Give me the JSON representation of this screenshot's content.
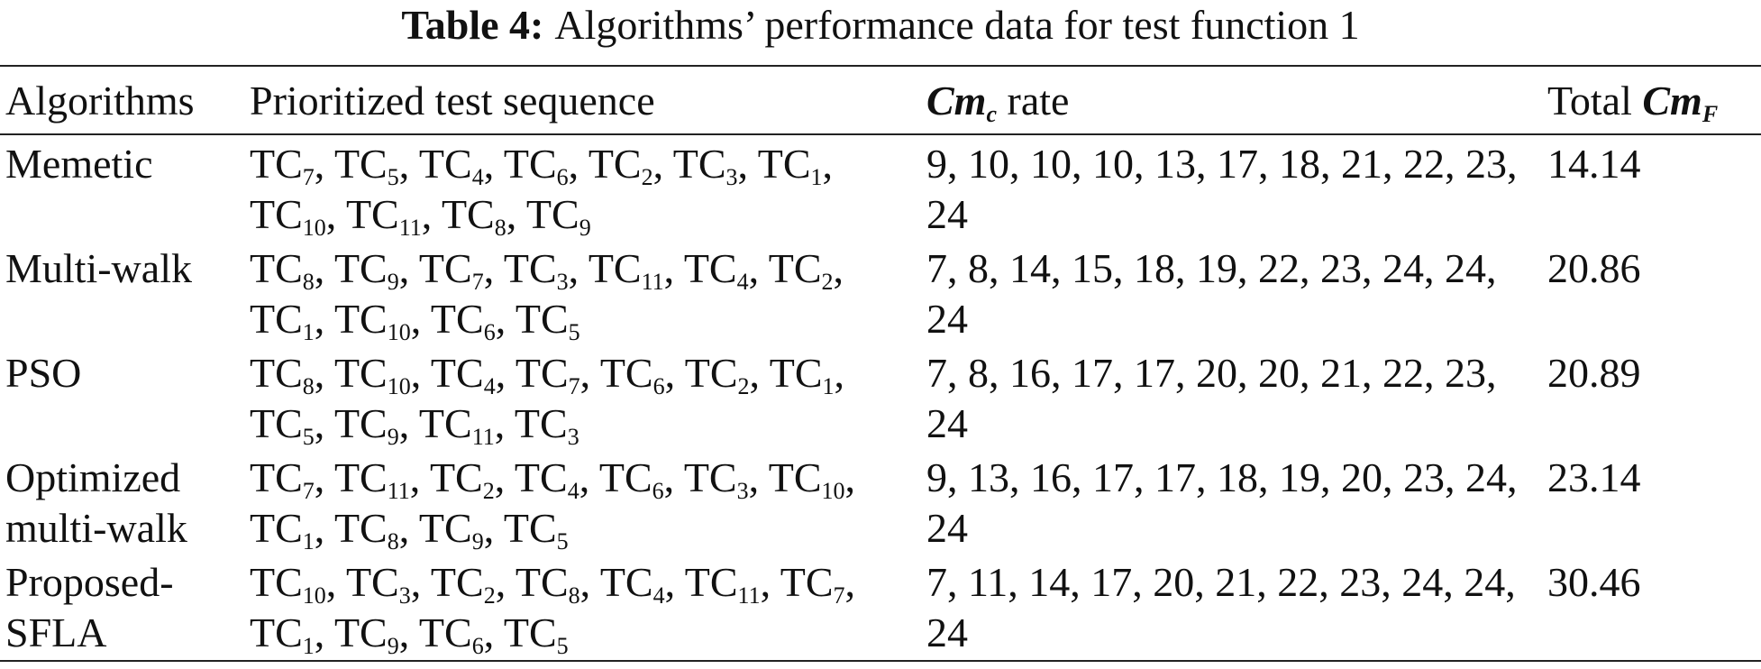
{
  "caption": {
    "label": "Table 4:",
    "text": "Algorithms’ performance data for test function 1"
  },
  "table": {
    "header": [
      "Algorithms",
      "Prioritized test sequence",
      {
        "symbol": "Cm",
        "sub": "c",
        "suffix": " rate"
      },
      {
        "prefix": "Total ",
        "symbol": "Cm",
        "sub": "F"
      }
    ],
    "rows": [
      {
        "algorithm": "Memetic",
        "sequence": [
          {
            "text": "TC",
            "sub": "7"
          },
          {
            "text": "TC",
            "sub": "5"
          },
          {
            "text": "TC",
            "sub": "4"
          },
          {
            "text": "TC",
            "sub": "6"
          },
          {
            "text": "TC",
            "sub": "2"
          },
          {
            "text": "TC",
            "sub": "3"
          },
          {
            "text": "TC",
            "sub": "1"
          },
          {
            "text": "TC",
            "sub": "10"
          },
          {
            "text": "TC",
            "sub": "11"
          },
          {
            "text": "TC",
            "sub": "8"
          },
          {
            "text": "TC",
            "sub": "9"
          }
        ],
        "rate": "9, 10, 10, 10, 13, 17, 18, 21, 22, 23, 24",
        "total": "14.14"
      },
      {
        "algorithm": "Multi-walk",
        "sequence": [
          {
            "text": "TC",
            "sub": "8"
          },
          {
            "text": "TC",
            "sub": "9"
          },
          {
            "text": "TC",
            "sub": "7"
          },
          {
            "text": "TC",
            "sub": "3"
          },
          {
            "text": "TC",
            "sub": "11"
          },
          {
            "text": "TC",
            "sub": "4"
          },
          {
            "text": "TC",
            "sub": "2"
          },
          {
            "text": "TC",
            "sub": "1"
          },
          {
            "text": "TC",
            "sub": "10"
          },
          {
            "text": "TC",
            "sub": "6"
          },
          {
            "text": "TC",
            "sub": "5"
          }
        ],
        "rate": "7, 8, 14, 15, 18, 19, 22, 23, 24, 24, 24",
        "total": "20.86"
      },
      {
        "algorithm": "PSO",
        "sequence": [
          {
            "text": "TC",
            "sub": "8"
          },
          {
            "text": "TC",
            "sub": "10"
          },
          {
            "text": "TC",
            "sub": "4"
          },
          {
            "text": "TC",
            "sub": "7"
          },
          {
            "text": "TC",
            "sub": "6"
          },
          {
            "text": "TC",
            "sub": "2"
          },
          {
            "text": "TC",
            "sub": "1"
          },
          {
            "text": "TC",
            "sub": "5"
          },
          {
            "text": "TC",
            "sub": "9"
          },
          {
            "text": "TC",
            "sub": "11"
          },
          {
            "text": "TC",
            "sub": "3"
          }
        ],
        "rate": "7, 8, 16, 17, 17, 20, 20, 21, 22, 23, 24",
        "total": "20.89"
      },
      {
        "algorithm": "Optimized multi-walk",
        "sequence": [
          {
            "text": "TC",
            "sub": "7"
          },
          {
            "text": "TC",
            "sub": "11"
          },
          {
            "text": "TC",
            "sub": "2"
          },
          {
            "text": "TC",
            "sub": "4"
          },
          {
            "text": "TC",
            "sub": "6"
          },
          {
            "text": "TC",
            "sub": "3"
          },
          {
            "text": "TC",
            "sub": "10"
          },
          {
            "text": "TC",
            "sub": "1"
          },
          {
            "text": "TC",
            "sub": "8"
          },
          {
            "text": "TC",
            "sub": "9"
          },
          {
            "text": "TC",
            "sub": "5"
          }
        ],
        "rate": "9, 13, 16, 17, 17, 18, 19, 20, 23, 24, 24",
        "total": "23.14"
      },
      {
        "algorithm": "Proposed-SFLA",
        "sequence": [
          {
            "text": "TC",
            "sub": "10"
          },
          {
            "text": "TC",
            "sub": "3"
          },
          {
            "text": "TC",
            "sub": "2"
          },
          {
            "text": "TC",
            "sub": "8"
          },
          {
            "text": "TC",
            "sub": "4"
          },
          {
            "text": "TC",
            "sub": "11"
          },
          {
            "text": "TC",
            "sub": "7"
          },
          {
            "text": "TC",
            "sub": "1"
          },
          {
            "text": "TC",
            "sub": "9"
          },
          {
            "text": "TC",
            "sub": "6"
          },
          {
            "text": "TC",
            "sub": "5"
          }
        ],
        "rate": "7, 11, 14, 17, 20, 21, 22, 23, 24, 24, 24",
        "total": "30.46"
      }
    ]
  }
}
